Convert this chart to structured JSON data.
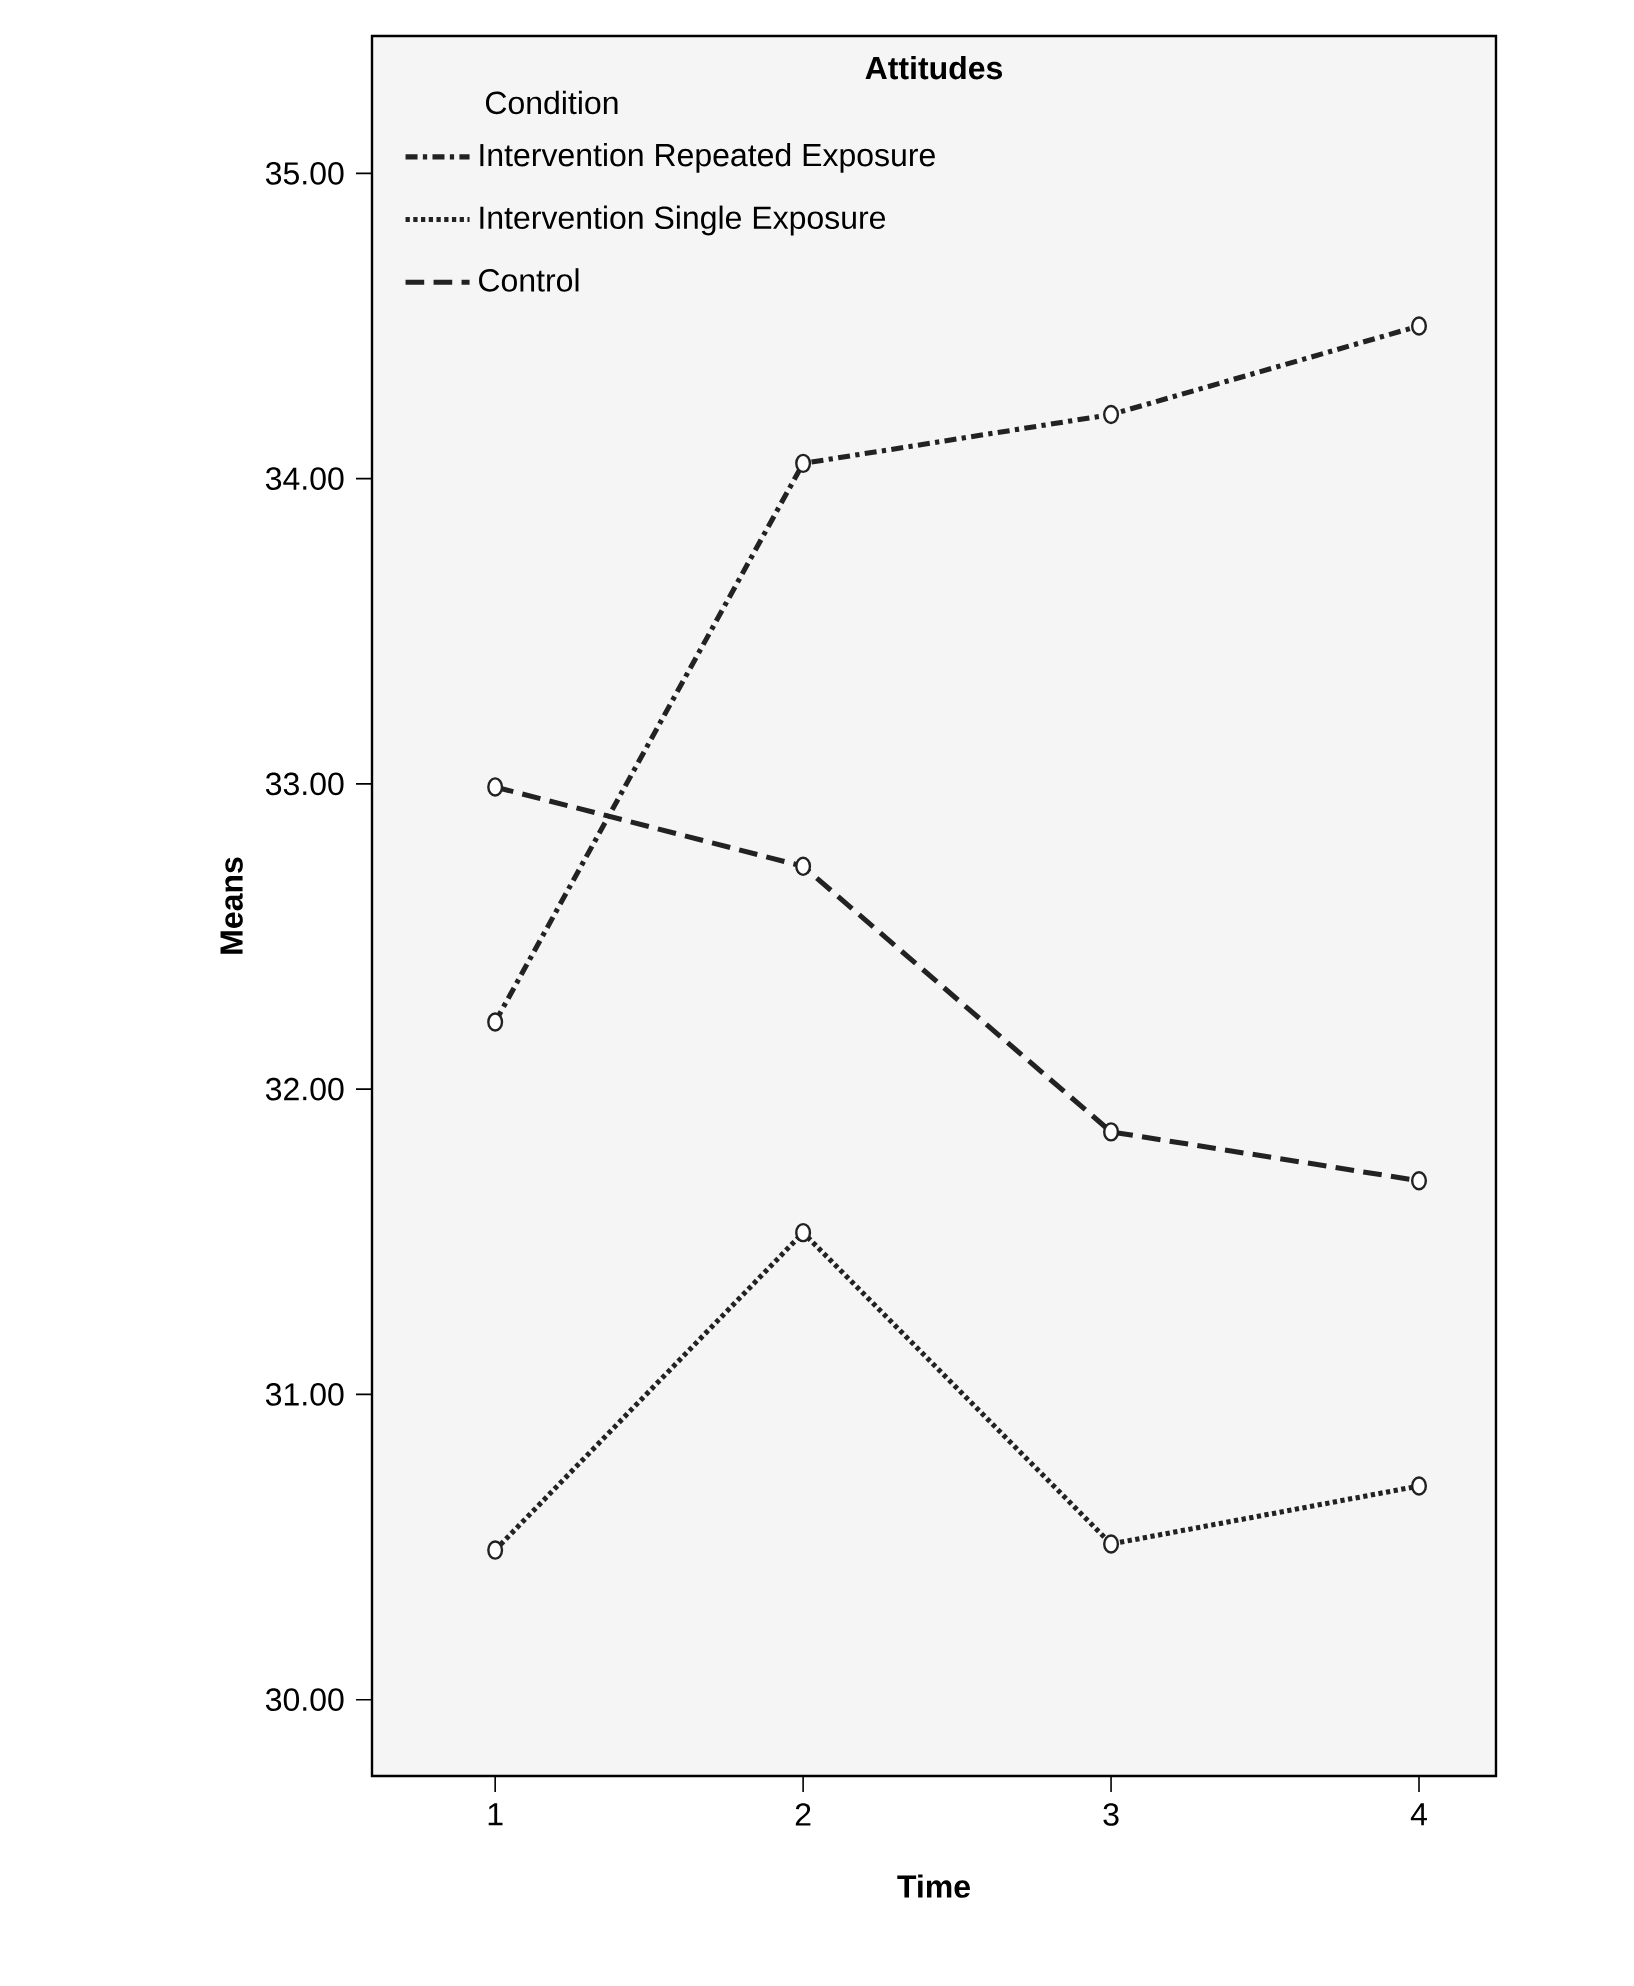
{
  "chart_data": {
    "type": "line",
    "title": "Attitudes",
    "xlabel": "Time",
    "ylabel": "Means",
    "legend_title": "Condition",
    "x": [
      1,
      2,
      3,
      4
    ],
    "series": [
      {
        "name": "Intervention Repeated Exposure",
        "color": "#222222",
        "line_style": "dashdot",
        "values": [
          32.22,
          34.05,
          34.21,
          34.5
        ]
      },
      {
        "name": "Intervention Single Exposure",
        "color": "#222222",
        "line_style": "dotted",
        "values": [
          30.49,
          31.53,
          30.51,
          30.7
        ]
      },
      {
        "name": "Control",
        "color": "#222222",
        "line_style": "dashed",
        "values": [
          32.99,
          32.73,
          31.86,
          31.7
        ]
      }
    ],
    "xlim": [
      0.6,
      4.25
    ],
    "ylim": [
      29.75,
      35.45
    ],
    "xticks": [
      1,
      2,
      3,
      4
    ],
    "yticks": [
      {
        "value": 30,
        "label": "30.00"
      },
      {
        "value": 31,
        "label": "31.00"
      },
      {
        "value": 32,
        "label": "32.00"
      },
      {
        "value": 33,
        "label": "33.00"
      },
      {
        "value": 34,
        "label": "34.00"
      },
      {
        "value": 35,
        "label": "35.00"
      }
    ],
    "legend": "top left",
    "marker": "circle",
    "grid": false
  }
}
